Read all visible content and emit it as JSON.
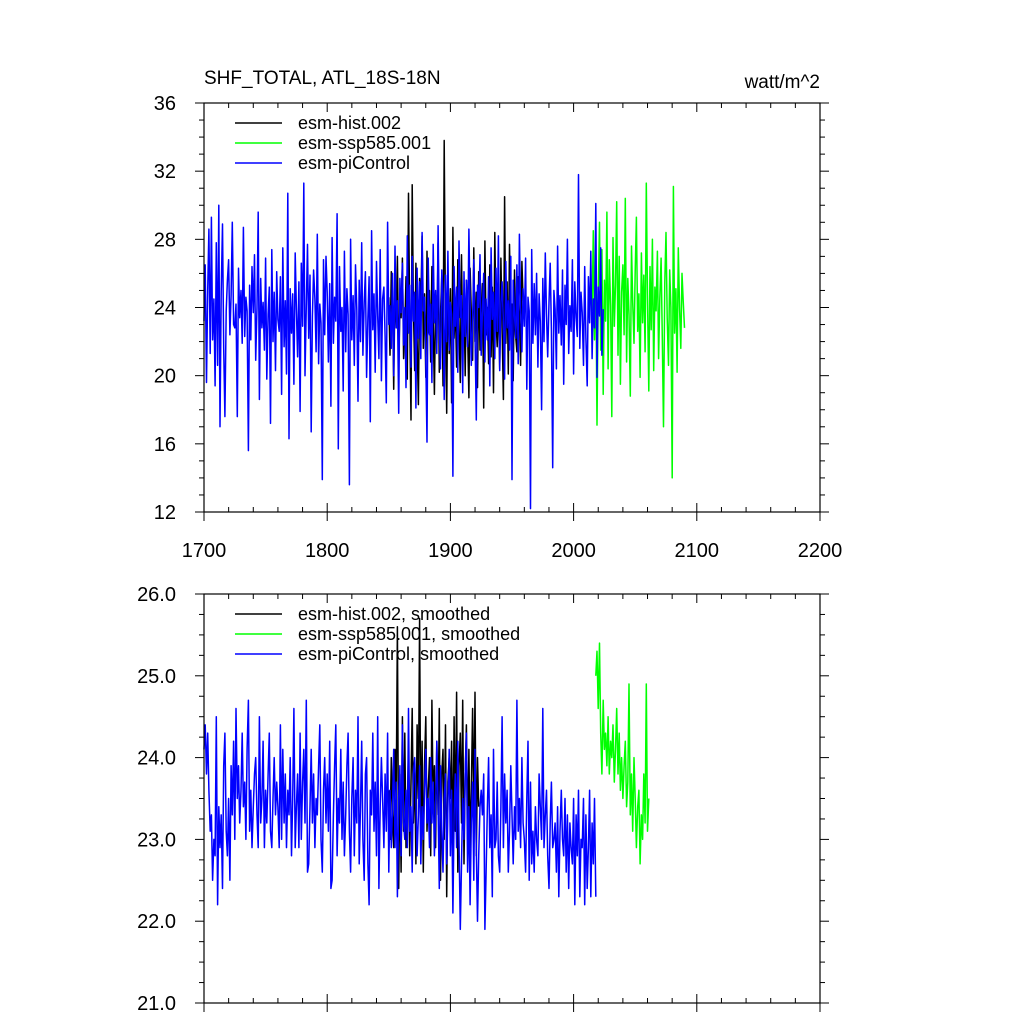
{
  "chart_data": [
    {
      "type": "line",
      "title": "SHF_TOTAL, ATL_18S-18N",
      "units": "watt/m^2",
      "xlim": [
        1700,
        2200
      ],
      "ylim": [
        12,
        36
      ],
      "x_ticks": [
        1700,
        1800,
        1900,
        2000,
        2100,
        2200
      ],
      "y_ticks": [
        12,
        16,
        20,
        24,
        28,
        32,
        36
      ],
      "y_decimals": 0,
      "show_x_labels": true,
      "legend_position": "top-left",
      "series": [
        {
          "name": "esm-hist.002",
          "color": "#000000",
          "x_start": 1850,
          "values": [
            24.6,
            21.2,
            26.1,
            24.9,
            19.2,
            25.5,
            22.8,
            27.0,
            20.6,
            24.1,
            23.4,
            26.9,
            21.0,
            22.7,
            25.8,
            19.8,
            30.7,
            23.5,
            17.4,
            31.2,
            24.0,
            20.3,
            26.6,
            22.1,
            18.3,
            25.7,
            23.9,
            28.2,
            21.6,
            24.8,
            19.9,
            27.3,
            22.5,
            25.0,
            20.8,
            26.4,
            23.1,
            18.9,
            24.7,
            21.9,
            27.8,
            20.2,
            23.6,
            25.9,
            19.4,
            33.8,
            22.9,
            17.8,
            26.0,
            21.3,
            25.1,
            18.4,
            28.7,
            22.2,
            24.3,
            20.5,
            26.8,
            23.0,
            19.6,
            27.1,
            21.8,
            24.5,
            20.0,
            25.6,
            22.6,
            18.7,
            26.3,
            23.7,
            20.9,
            27.5,
            22.0,
            24.9,
            19.3,
            26.1,
            21.5,
            23.8,
            25.4,
            18.1,
            27.9,
            22.4,
            24.0,
            20.7,
            26.5,
            21.1,
            25.2,
            19.0,
            28.4,
            23.3,
            21.7,
            24.6,
            20.4,
            26.9,
            22.8,
            18.6,
            30.5,
            21.9,
            25.5,
            20.1,
            27.7,
            23.0,
            24.2,
            19.7,
            26.2,
            22.3,
            21.4,
            25.8,
            23.5,
            20.6,
            26.7,
            24.4
          ]
        },
        {
          "name": "esm-ssp585.001",
          "color": "#00ff00",
          "x_start": 2015,
          "values": [
            23.8,
            28.5,
            22.1,
            26.0,
            17.1,
            24.7,
            29.0,
            21.5,
            27.4,
            18.9,
            25.6,
            23.2,
            29.6,
            20.4,
            26.8,
            24.1,
            17.6,
            28.1,
            22.9,
            25.3,
            30.2,
            21.2,
            27.0,
            19.5,
            24.9,
            26.5,
            22.4,
            30.4,
            20.8,
            25.7,
            23.6,
            18.8,
            27.6,
            24.3,
            21.9,
            26.1,
            29.3,
            22.6,
            24.8,
            19.9,
            27.2,
            23.1,
            25.9,
            21.4,
            31.3,
            24.6,
            19.1,
            26.4,
            22.7,
            28.0,
            20.3,
            25.2,
            23.8,
            27.3,
            21.0,
            24.5,
            26.9,
            22.2,
            17.0,
            25.5,
            28.4,
            23.4,
            20.6,
            26.2,
            24.0,
            14.0,
            31.1,
            22.5,
            25.1,
            20.2,
            27.5,
            23.9,
            21.6,
            26.0,
            24.4,
            22.8
          ]
        },
        {
          "name": "esm-piControl",
          "color": "#0000ff",
          "x_start": 1700,
          "values": [
            23.2,
            26.5,
            19.6,
            25.0,
            28.6,
            21.3,
            29.3,
            22.1,
            24.5,
            19.4,
            27.8,
            20.6,
            30.0,
            17.0,
            24.9,
            28.9,
            21.6,
            17.6,
            23.8,
            25.6,
            26.8,
            22.4,
            24.7,
            29.0,
            23.0,
            22.8,
            24.2,
            17.6,
            26.3,
            23.4,
            25.0,
            21.9,
            28.7,
            22.3,
            24.6,
            23.8,
            15.6,
            25.3,
            22.1,
            26.4,
            23.7,
            27.1,
            20.9,
            24.0,
            29.6,
            18.6,
            25.7,
            22.8,
            24.3,
            21.5,
            26.9,
            19.8,
            23.6,
            25.2,
            17.2,
            27.4,
            22.0,
            24.9,
            20.3,
            26.1,
            23.3,
            22.6,
            25.8,
            18.9,
            27.5,
            21.7,
            24.4,
            20.1,
            30.7,
            16.3,
            25.1,
            22.5,
            24.8,
            19.5,
            27.2,
            23.9,
            21.1,
            25.5,
            17.9,
            26.6,
            22.9,
            31.3,
            20.0,
            24.1,
            27.7,
            22.2,
            25.9,
            16.7,
            23.5,
            26.2,
            24.5,
            21.4,
            28.3,
            20.7,
            24.2,
            23.1,
            13.9,
            26.8,
            22.4,
            27.0,
            24.9,
            20.8,
            25.4,
            18.2,
            28.1,
            21.9,
            24.6,
            23.2,
            29.5,
            15.7,
            26.4,
            22.6,
            24.0,
            19.1,
            27.3,
            21.4,
            25.1,
            23.6,
            13.6,
            28.0,
            22.1,
            24.7,
            20.6,
            26.5,
            23.9,
            18.5,
            25.6,
            22.0,
            27.8,
            21.2,
            24.3,
            26.1,
            19.9,
            23.4,
            25.8,
            17.3,
            28.5,
            22.7,
            24.8,
            20.2,
            26.7,
            23.5,
            21.0,
            27.4,
            19.7,
            24.5,
            25.2,
            22.3,
            18.4,
            29.0,
            23.0,
            24.1,
            21.6,
            26.0,
            20.0,
            27.6,
            22.8,
            24.4,
            17.8,
            25.7,
            23.7,
            26.6,
            21.8,
            24.0,
            19.3,
            28.2,
            22.5,
            25.3,
            20.5,
            27.0,
            23.2,
            24.9,
            18.1,
            26.3,
            22.2,
            25.5,
            21.0,
            28.4,
            23.8,
            24.6,
            20.9,
            16.1,
            26.9,
            22.4,
            24.2,
            19.6,
            27.7,
            23.1,
            25.0,
            21.3,
            28.8,
            22.7,
            20.4,
            26.2,
            24.8,
            18.6,
            25.9,
            22.0,
            27.3,
            21.5,
            24.3,
            23.6,
            14.1,
            26.4,
            22.9,
            25.2,
            20.2,
            27.9,
            23.4,
            24.7,
            19.0,
            26.1,
            22.3,
            25.6,
            21.7,
            28.6,
            24.1,
            20.6,
            23.0,
            26.8,
            22.5,
            17.4,
            25.3,
            24.0,
            27.1,
            21.2,
            23.7,
            26.0,
            20.8,
            24.5,
            22.1,
            25.8,
            19.4,
            27.5,
            23.3,
            24.9,
            21.0,
            26.3,
            22.6,
            28.2,
            20.3,
            24.2,
            25.5,
            23.1,
            19.8,
            26.7,
            22.8,
            24.4,
            21.5,
            27.0,
            13.9,
            25.6,
            23.5,
            22.2,
            26.5,
            20.7,
            28.3,
            24.0,
            21.4,
            25.1,
            22.9,
            26.9,
            19.2,
            24.6,
            23.8,
            12.2,
            27.4,
            21.9,
            25.4,
            22.4,
            26.0,
            20.5,
            24.8,
            23.2,
            18.0,
            25.7,
            22.0,
            27.2,
            23.6,
            21.1,
            24.3,
            26.6,
            22.7,
            14.6,
            25.0,
            23.9,
            20.4,
            27.6,
            22.5,
            24.7,
            21.8,
            26.2,
            19.5,
            25.3,
            23.0,
            28.0,
            21.3,
            24.1,
            22.6,
            26.8,
            20.1,
            25.5,
            23.4,
            22.3,
            31.8,
            21.6,
            24.9,
            23.7,
            20.6,
            26.4,
            22.2,
            19.4,
            25.8,
            23.1,
            27.3,
            21.0,
            24.5,
            22.8,
            30.1,
            19.9,
            25.2,
            23.5,
            27.5,
            21.2,
            23.9
          ]
        }
      ]
    },
    {
      "type": "line",
      "title": "",
      "units": "",
      "xlim": [
        1700,
        2200
      ],
      "ylim": [
        21.0,
        26.0
      ],
      "x_ticks": [
        1700,
        1800,
        1900,
        2000,
        2100,
        2200
      ],
      "y_ticks": [
        21.0,
        22.0,
        23.0,
        24.0,
        25.0,
        26.0
      ],
      "y_decimals": 1,
      "show_x_labels": false,
      "legend_position": "top-left",
      "series": [
        {
          "name": "esm-hist.002, smoothed",
          "color": "#000000",
          "x_start": 1850,
          "values": [
            23.6,
            23.0,
            24.0,
            23.3,
            22.9,
            24.1,
            23.5,
            25.6,
            22.4,
            23.8,
            22.6,
            24.5,
            23.1,
            24.3,
            22.9,
            23.4,
            24.1,
            22.8,
            23.7,
            24.6,
            23.2,
            23.9,
            22.7,
            24.4,
            23.5,
            25.7,
            23.0,
            24.2,
            22.6,
            23.9,
            24.5,
            23.1,
            23.6,
            24.0,
            22.8,
            24.7,
            23.4,
            23.9,
            22.9,
            24.2,
            23.3,
            24.6,
            22.5,
            23.8,
            24.1,
            23.0,
            24.4,
            22.3,
            23.7,
            24.0,
            23.5,
            24.2,
            22.8,
            24.5,
            23.1,
            24.8,
            22.6,
            23.9,
            24.3,
            23.2,
            24.7,
            22.7,
            23.8,
            24.4,
            23.0,
            24.1,
            22.9,
            23.6,
            24.6,
            23.3,
            24.8,
            22.8,
            24.0,
            23.4
          ]
        },
        {
          "name": "esm-ssp585.001, smoothed",
          "color": "#00ff00",
          "x_start": 2018,
          "values": [
            25.0,
            25.3,
            24.6,
            25.4,
            24.3,
            23.8,
            24.7,
            24.1,
            24.3,
            23.9,
            24.5,
            23.8,
            24.2,
            24.0,
            24.4,
            23.7,
            24.1,
            24.6,
            23.8,
            24.3,
            23.6,
            24.0,
            23.5,
            23.9,
            24.2,
            23.4,
            23.7,
            24.9,
            23.3,
            23.8,
            23.1,
            24.0,
            23.5,
            22.9,
            23.4,
            23.6,
            22.7,
            23.3,
            23.0,
            23.8,
            23.2,
            24.9,
            23.1,
            23.5
          ]
        },
        {
          "name": "esm-piControl, smoothed",
          "color": "#0000ff",
          "x_start": 1700,
          "values": [
            24.1,
            24.4,
            23.8,
            24.3,
            23.6,
            23.1,
            23.3,
            22.5,
            23.0,
            22.8,
            24.5,
            22.2,
            23.4,
            22.9,
            23.3,
            22.4,
            23.9,
            24.3,
            23.1,
            22.8,
            23.5,
            22.5,
            23.9,
            23.3,
            24.2,
            23.0,
            24.6,
            23.5,
            23.9,
            23.2,
            23.6,
            24.3,
            23.4,
            23.7,
            23.0,
            24.1,
            24.7,
            23.1,
            23.6,
            22.9,
            23.4,
            23.8,
            24.0,
            23.3,
            22.9,
            24.5,
            23.2,
            23.5,
            24.2,
            22.9,
            23.6,
            23.2,
            23.8,
            24.3,
            23.1,
            22.9,
            23.5,
            24.0,
            23.3,
            23.7,
            23.4,
            22.9,
            24.4,
            23.0,
            24.1,
            23.2,
            23.8,
            22.9,
            23.6,
            23.3,
            24.0,
            22.8,
            23.5,
            24.6,
            22.9,
            23.4,
            23.8,
            22.9,
            24.3,
            23.0,
            23.7,
            24.1,
            23.2,
            24.7,
            22.6,
            22.7,
            23.4,
            24.1,
            23.2,
            23.8,
            22.9,
            23.5,
            23.3,
            23.9,
            24.4,
            23.0,
            22.6,
            23.6,
            24.0,
            23.2,
            23.8,
            23.1,
            24.2,
            22.4,
            22.5,
            23.3,
            23.9,
            24.4,
            22.8,
            23.5,
            23.2,
            24.1,
            23.0,
            23.7,
            22.8,
            23.3,
            23.9,
            24.3,
            23.1,
            22.6,
            23.5,
            24.0,
            22.8,
            23.6,
            23.2,
            24.5,
            22.7,
            23.4,
            24.2,
            23.0,
            22.5,
            23.8,
            24.0,
            22.7,
            22.2,
            23.6,
            23.3,
            24.3,
            23.1,
            23.7,
            22.8,
            24.5,
            22.4,
            23.4,
            24.0,
            23.5,
            22.9,
            23.8,
            23.1,
            24.3,
            22.6,
            23.6,
            22.9,
            23.4,
            24.1,
            22.9,
            23.7,
            22.3,
            23.5,
            23.9,
            22.8,
            24.4,
            23.2,
            23.0,
            23.6,
            22.9,
            24.6,
            23.1,
            23.4,
            22.6,
            23.8,
            24.0,
            23.5,
            22.8,
            23.3,
            23.9,
            22.7,
            23.4,
            23.0,
            23.6,
            24.1,
            23.2,
            23.5,
            22.9,
            24.0,
            23.2,
            23.7,
            22.8,
            23.3,
            24.2,
            23.4,
            22.4,
            23.9,
            23.1,
            22.6,
            23.5,
            23.8,
            22.7,
            23.4,
            24.1,
            22.8,
            23.6,
            22.1,
            23.3,
            23.8,
            22.9,
            24.2,
            23.0,
            21.9,
            22.7,
            23.5,
            23.0,
            23.8,
            24.3,
            22.6,
            23.4,
            22.2,
            23.2,
            23.7,
            22.5,
            24.1,
            22.9,
            22.0,
            22.8,
            23.4,
            23.6,
            23.3,
            23.8,
            21.9,
            22.6,
            23.4,
            24.0,
            22.9,
            23.3,
            22.3,
            24.1,
            22.9,
            23.0,
            23.7,
            22.8,
            22.6,
            23.4,
            24.5,
            22.9,
            23.8,
            23.2,
            23.6,
            22.6,
            23.1,
            23.9,
            23.3,
            22.7,
            23.4,
            23.0,
            24.7,
            23.1,
            23.5,
            22.9,
            24.0,
            23.2,
            23.0,
            22.6,
            23.5,
            24.2,
            22.5,
            23.7,
            22.7,
            23.1,
            22.6,
            23.4,
            23.0,
            22.8,
            23.8,
            23.4,
            23.0,
            24.6,
            22.9,
            23.3,
            23.6,
            22.8,
            22.4,
            23.2,
            23.7,
            22.9,
            23.0,
            23.2,
            22.6,
            23.4,
            22.3,
            23.1,
            23.6,
            23.0,
            22.8,
            23.5,
            22.6,
            23.3,
            22.4,
            23.2,
            22.9,
            22.7,
            23.5,
            22.2,
            23.3,
            22.8,
            23.6,
            22.3,
            23.0,
            22.9,
            23.5,
            22.2,
            23.3,
            22.4,
            22.9,
            23.6,
            22.3,
            23.2,
            22.7,
            23.5,
            22.3
          ]
        }
      ]
    }
  ]
}
